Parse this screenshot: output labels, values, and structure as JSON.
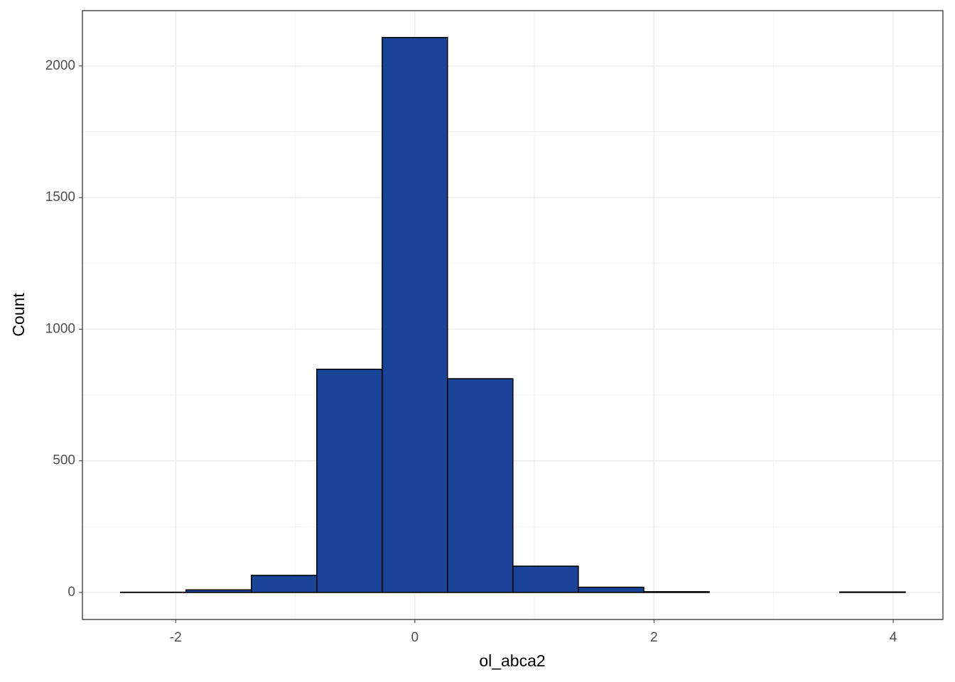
{
  "chart_data": {
    "type": "histogram",
    "x_label": "ol_abca2",
    "y_label": "Count",
    "bins": [
      -2.461,
      -1.914,
      -1.367,
      -0.82,
      -0.273,
      0.273,
      0.82,
      1.367,
      1.914,
      2.461,
      3.007,
      3.554,
      4.101
    ],
    "values": [
      1,
      10,
      65,
      848,
      2108,
      812,
      100,
      20,
      3,
      0,
      0,
      2
    ],
    "color": "#1a4498",
    "xlim": [
      -2.78,
      4.416
    ],
    "xticks": [
      -2,
      0,
      2,
      4
    ],
    "ylim": [
      -102.6,
      2210
    ],
    "yticks": [
      0,
      500,
      1000,
      1500,
      2000
    ],
    "grid": true
  }
}
